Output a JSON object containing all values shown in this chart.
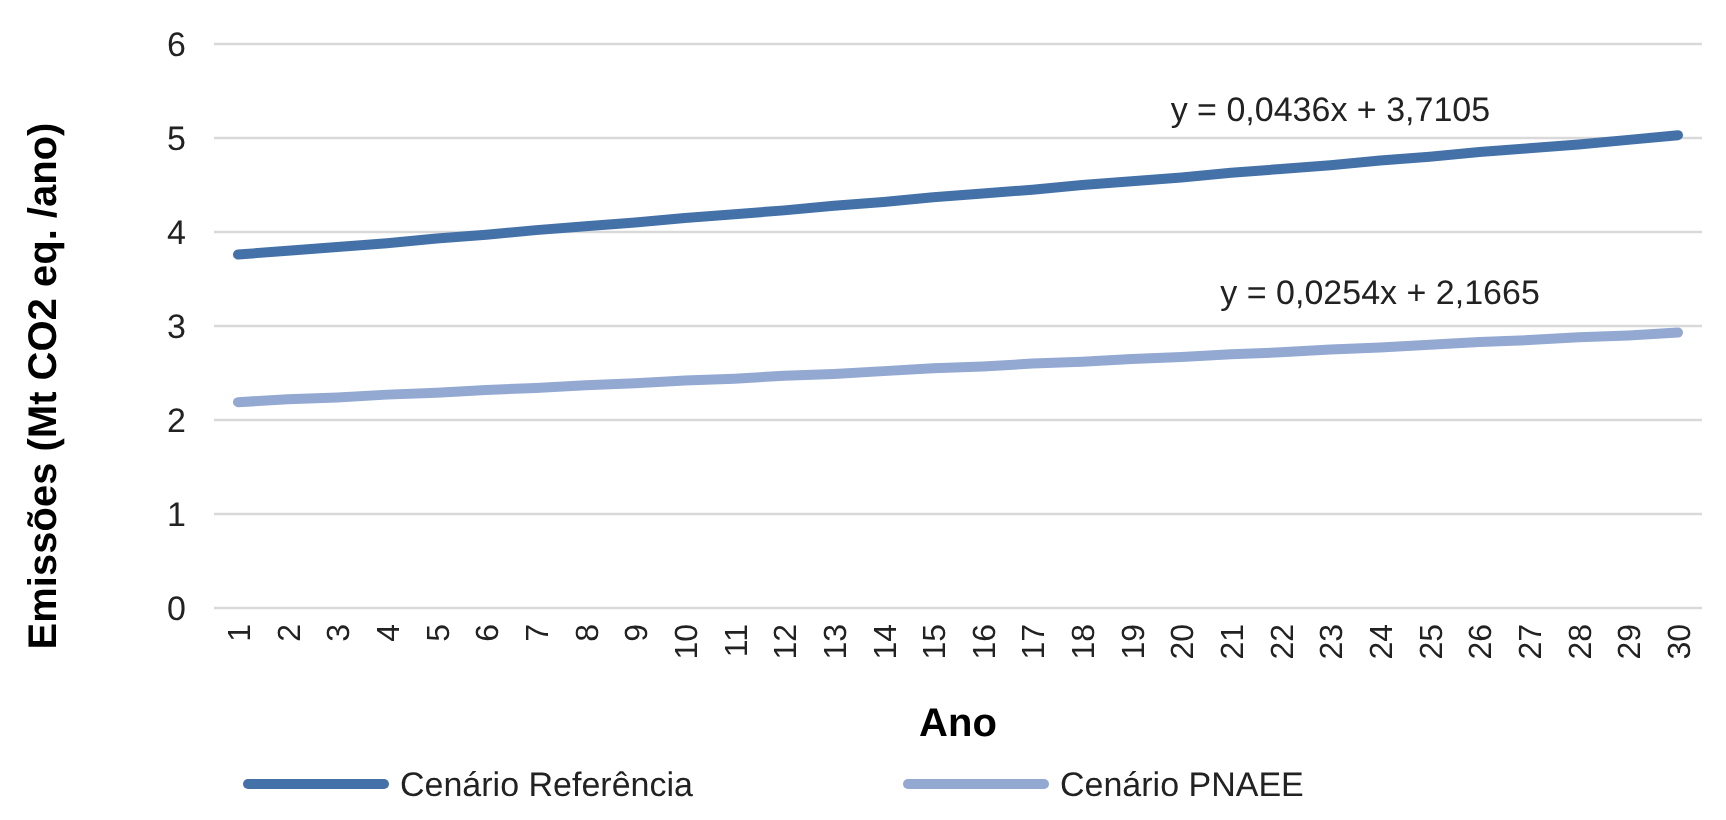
{
  "chart_data": {
    "type": "line",
    "xlabel": "Ano",
    "ylabel": "Emissões (Mt CO2 eq. /ano)",
    "categories": [
      "1",
      "2",
      "3",
      "4",
      "5",
      "6",
      "7",
      "8",
      "9",
      "10",
      "11",
      "12",
      "13",
      "14",
      "15",
      "16",
      "17",
      "18",
      "19",
      "20",
      "21",
      "22",
      "23",
      "24",
      "25",
      "26",
      "27",
      "28",
      "29",
      "30"
    ],
    "series": [
      {
        "name": "Cenário Referência",
        "color": "#4472a8",
        "values": [
          3.76,
          3.8,
          3.84,
          3.88,
          3.93,
          3.97,
          4.02,
          4.06,
          4.1,
          4.15,
          4.19,
          4.23,
          4.28,
          4.32,
          4.37,
          4.41,
          4.45,
          4.5,
          4.54,
          4.58,
          4.63,
          4.67,
          4.71,
          4.76,
          4.8,
          4.85,
          4.89,
          4.93,
          4.98,
          5.03
        ]
      },
      {
        "name": "Cenário PNAEE",
        "color": "#93a9d2",
        "values": [
          2.19,
          2.22,
          2.24,
          2.27,
          2.29,
          2.32,
          2.34,
          2.37,
          2.39,
          2.42,
          2.44,
          2.47,
          2.49,
          2.52,
          2.55,
          2.57,
          2.6,
          2.62,
          2.65,
          2.67,
          2.7,
          2.72,
          2.75,
          2.77,
          2.8,
          2.83,
          2.85,
          2.88,
          2.9,
          2.93
        ]
      }
    ],
    "ylim": [
      0,
      6
    ],
    "yticks": [
      0,
      1,
      2,
      3,
      4,
      5,
      6
    ],
    "grid": "y",
    "legend": "bottom",
    "marker": "none",
    "line_style": "solid",
    "annotations": [
      "y = 0,0436x + 3,7105",
      "y = 0,0254x + 2,1665"
    ]
  }
}
